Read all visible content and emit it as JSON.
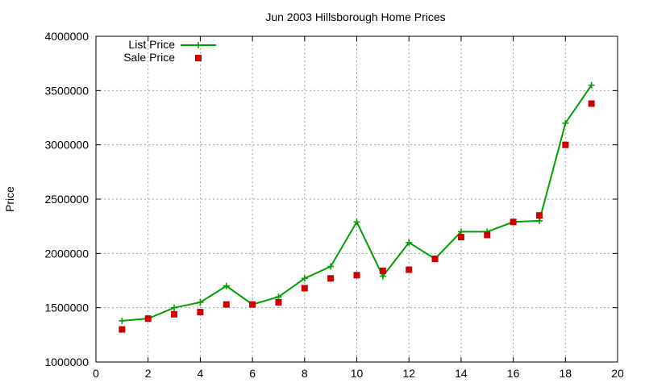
{
  "chart_data": {
    "type": "line",
    "title": "Jun 2003 Hillsborough Home Prices",
    "xlabel": "",
    "ylabel": "Price",
    "xlim": [
      0,
      20
    ],
    "ylim": [
      1000000,
      4000000
    ],
    "x_ticks": [
      "0",
      "2",
      "4",
      "6",
      "8",
      "10",
      "12",
      "14",
      "16",
      "18",
      "20"
    ],
    "y_ticks": [
      "1000000",
      "1500000",
      "2000000",
      "2500000",
      "3000000",
      "3500000",
      "4000000"
    ],
    "grid": true,
    "legend_position": "top-left",
    "series": [
      {
        "name": "List Price",
        "style": "line-with-plus-markers",
        "color": "#00a000",
        "x": [
          1,
          2,
          3,
          4,
          5,
          6,
          7,
          8,
          9,
          10,
          11,
          12,
          13,
          14,
          15,
          16,
          17,
          18,
          19
        ],
        "values": [
          1380000,
          1400000,
          1500000,
          1550000,
          1700000,
          1530000,
          1600000,
          1770000,
          1880000,
          2290000,
          1790000,
          2100000,
          1950000,
          2200000,
          2200000,
          2290000,
          2300000,
          3200000,
          3550000
        ]
      },
      {
        "name": "Sale Price",
        "style": "square-markers",
        "color": "#cc0000",
        "x": [
          1,
          2,
          3,
          4,
          5,
          6,
          7,
          8,
          9,
          10,
          11,
          12,
          13,
          14,
          15,
          16,
          17,
          18,
          19
        ],
        "values": [
          1300000,
          1400000,
          1440000,
          1460000,
          1530000,
          1530000,
          1550000,
          1680000,
          1770000,
          1800000,
          1840000,
          1850000,
          1950000,
          2150000,
          2170000,
          2290000,
          2350000,
          3000000,
          3380000
        ]
      }
    ]
  }
}
